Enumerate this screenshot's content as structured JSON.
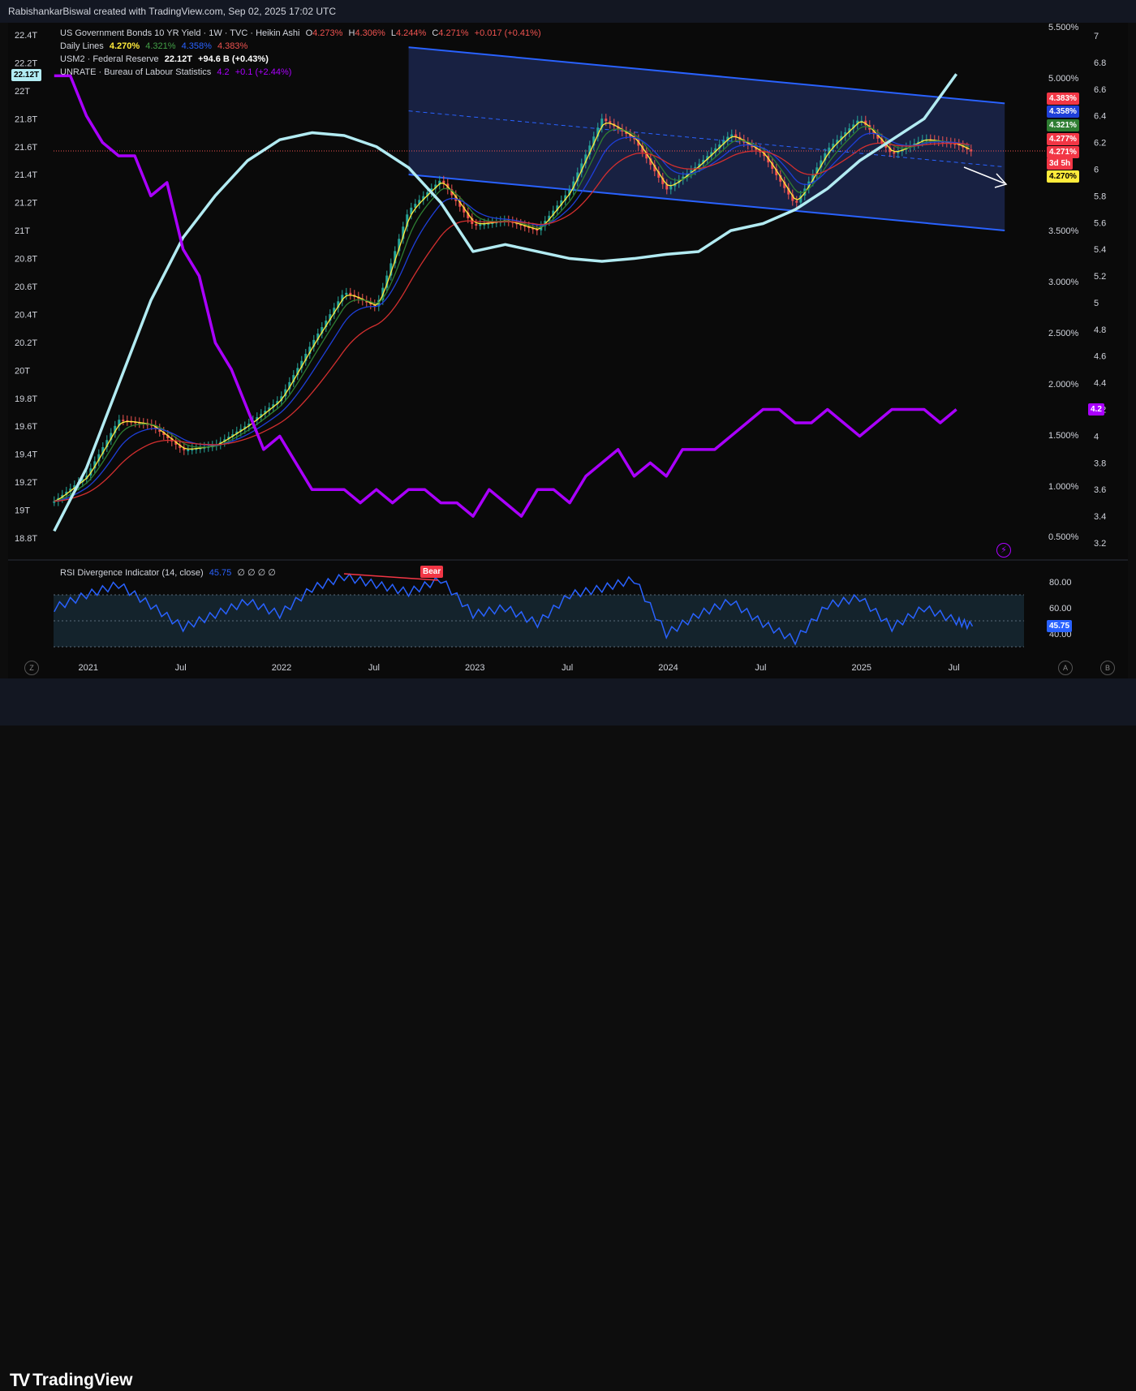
{
  "attribution": "RabishankarBiswal created with TradingView.com, Sep 02, 2025 17:02 UTC",
  "brand": "TradingView",
  "legend": {
    "line1": {
      "name": "US Government Bonds 10 YR Yield · 1W · TVC · Heikin Ashi",
      "o_label": "O",
      "o": "4.273%",
      "h_label": "H",
      "h": "4.306%",
      "l_label": "L",
      "l": "4.244%",
      "c_label": "C",
      "c": "4.271%",
      "chg": "+0.017 (+0.41%)"
    },
    "line2": {
      "name": "Daily Lines",
      "v1": "4.270%",
      "v2": "4.321%",
      "v3": "4.358%",
      "v4": "4.383%"
    },
    "line3": {
      "name": "USM2 · Federal Reserve",
      "value": "22.12T",
      "chg": "+94.6 B (+0.43%)"
    },
    "line4": {
      "name": "UNRATE · Bureau of Labour Statistics",
      "value": "4.2",
      "chg": "+0.1 (+2.44%)"
    },
    "rsi": {
      "name": "RSI Divergence Indicator (14, close)",
      "value": "45.75",
      "zeros": "∅ ∅ ∅ ∅"
    }
  },
  "colors": {
    "bg": "#0a0a0a",
    "m2": "#b2ebf2",
    "unrate": "#aa00ff",
    "yellow": "#ffeb3b",
    "green": "#2e7d32",
    "blue": "#1e3fd8",
    "red": "#d32f2f",
    "channel": "#2962ff",
    "rsi": "#2962ff",
    "up": "#26a69a",
    "down": "#ef5350"
  },
  "left_axis_labels": [
    "22.4T",
    "22.2T",
    "22T",
    "21.8T",
    "21.6T",
    "21.4T",
    "21.2T",
    "21T",
    "20.8T",
    "20.6T",
    "20.4T",
    "20.2T",
    "20T",
    "19.8T",
    "19.6T",
    "19.4T",
    "19.2T",
    "19T",
    "18.8T"
  ],
  "m2_current_tag": "22.12T",
  "yield_axis_labels": [
    "5.500%",
    "5.000%",
    "3.500%",
    "3.000%",
    "2.500%",
    "2.000%",
    "1.500%",
    "1.000%",
    "0.500%"
  ],
  "unrate_axis_labels": [
    "7",
    "6.8",
    "6.6",
    "6.4",
    "6.2",
    "6",
    "5.8",
    "5.6",
    "5.4",
    "5.2",
    "5",
    "4.8",
    "4.6",
    "4.4",
    "4.2",
    "4",
    "3.8",
    "3.6",
    "3.4",
    "3.2"
  ],
  "price_tags": [
    {
      "text": "4.383%",
      "bg": "#f23645",
      "fg": "#ffffff"
    },
    {
      "text": "4.358%",
      "bg": "#1e3fd8",
      "fg": "#ffffff"
    },
    {
      "text": "4.321%",
      "bg": "#2e7d32",
      "fg": "#ffffff"
    },
    {
      "text": "4.277%",
      "bg": "#f23645",
      "fg": "#ffffff"
    },
    {
      "text": "4.271%",
      "bg": "#f23645",
      "fg": "#ffffff"
    },
    {
      "text": "3d 5h",
      "bg": "#f23645",
      "fg": "#ffffff"
    },
    {
      "text": "4.270%",
      "bg": "#ffeb3b",
      "fg": "#000000"
    }
  ],
  "unrate_tag": "4.2",
  "rsi_axis_labels": [
    "80.00",
    "60.00",
    "40.00"
  ],
  "rsi_tag": "45.75",
  "bear_label": "Bear",
  "x_labels": [
    "2021",
    "Jul",
    "2022",
    "Jul",
    "2023",
    "Jul",
    "2024",
    "Jul",
    "2025",
    "Jul"
  ],
  "corner_buttons": {
    "left": "Z",
    "a": "A",
    "b": "B"
  },
  "chart_data": [
    {
      "type": "line",
      "series": [
        {
          "name": "USM2 · Federal Reserve",
          "x": [
            "2020-11",
            "2021-01",
            "2021-03",
            "2021-05",
            "2021-07",
            "2021-09",
            "2021-11",
            "2022-01",
            "2022-03",
            "2022-05",
            "2022-07",
            "2022-09",
            "2022-11",
            "2023-01",
            "2023-03",
            "2023-05",
            "2023-07",
            "2023-09",
            "2023-11",
            "2024-01",
            "2024-03",
            "2024-05",
            "2024-07",
            "2024-09",
            "2024-11",
            "2025-01",
            "2025-03",
            "2025-05",
            "2025-07"
          ],
          "values": [
            18.85,
            19.3,
            19.9,
            20.5,
            20.95,
            21.25,
            21.5,
            21.65,
            21.7,
            21.68,
            21.6,
            21.45,
            21.2,
            20.85,
            20.9,
            20.85,
            20.8,
            20.78,
            20.8,
            20.83,
            20.85,
            21.0,
            21.05,
            21.15,
            21.3,
            21.5,
            21.65,
            21.8,
            22.12
          ]
        },
        {
          "name": "UNRATE · Bureau of Labour Statistics",
          "x": [
            "2020-11",
            "2020-12",
            "2021-01",
            "2021-02",
            "2021-03",
            "2021-04",
            "2021-05",
            "2021-06",
            "2021-07",
            "2021-08",
            "2021-09",
            "2021-10",
            "2021-11",
            "2021-12",
            "2022-01",
            "2022-02",
            "2022-03",
            "2022-04",
            "2022-05",
            "2022-06",
            "2022-07",
            "2022-08",
            "2022-09",
            "2022-10",
            "2022-11",
            "2022-12",
            "2023-01",
            "2023-02",
            "2023-03",
            "2023-04",
            "2023-05",
            "2023-06",
            "2023-07",
            "2023-08",
            "2023-09",
            "2023-10",
            "2023-11",
            "2023-12",
            "2024-01",
            "2024-02",
            "2024-03",
            "2024-04",
            "2024-05",
            "2024-06",
            "2024-07",
            "2024-08",
            "2024-09",
            "2024-10",
            "2024-11",
            "2024-12",
            "2025-01",
            "2025-02",
            "2025-03",
            "2025-04",
            "2025-05",
            "2025-06",
            "2025-07"
          ],
          "values": [
            6.7,
            6.7,
            6.4,
            6.2,
            6.1,
            6.1,
            5.8,
            5.9,
            5.4,
            5.2,
            4.7,
            4.5,
            4.2,
            3.9,
            4.0,
            3.8,
            3.6,
            3.6,
            3.6,
            3.5,
            3.6,
            3.5,
            3.6,
            3.6,
            3.5,
            3.5,
            3.4,
            3.6,
            3.5,
            3.4,
            3.6,
            3.6,
            3.5,
            3.7,
            3.8,
            3.9,
            3.7,
            3.8,
            3.7,
            3.9,
            3.9,
            3.9,
            4.0,
            4.1,
            4.2,
            4.2,
            4.1,
            4.1,
            4.2,
            4.1,
            4.0,
            4.1,
            4.2,
            4.2,
            4.2,
            4.1,
            4.2
          ]
        }
      ]
    },
    {
      "type": "candlestick",
      "title": "US Government Bonds 10 YR Yield · 1W · TVC · Heikin Ashi",
      "x": [
        "2020-11",
        "2021-01",
        "2021-03",
        "2021-05",
        "2021-07",
        "2021-09",
        "2021-11",
        "2022-01",
        "2022-03",
        "2022-05",
        "2022-07",
        "2022-09",
        "2022-11",
        "2023-01",
        "2023-03",
        "2023-05",
        "2023-07",
        "2023-09",
        "2023-11",
        "2024-01",
        "2024-03",
        "2024-05",
        "2024-07",
        "2024-09",
        "2024-11",
        "2025-01",
        "2025-03",
        "2025-05",
        "2025-07",
        "2025-08"
      ],
      "values": [
        0.85,
        1.1,
        1.65,
        1.6,
        1.35,
        1.4,
        1.6,
        1.85,
        2.4,
        2.9,
        2.75,
        3.7,
        4.0,
        3.55,
        3.6,
        3.5,
        3.9,
        4.6,
        4.4,
        3.9,
        4.15,
        4.45,
        4.25,
        3.75,
        4.3,
        4.6,
        4.25,
        4.4,
        4.35,
        4.27
      ],
      "ylim": [
        0.3,
        5.5
      ],
      "channel": {
        "upper": [
          [
            "2022-09",
            5.3
          ],
          [
            "2025-10",
            4.75
          ]
        ],
        "lower": [
          [
            "2022-09",
            4.05
          ],
          [
            "2025-10",
            3.5
          ]
        ]
      }
    },
    {
      "type": "line",
      "title": "RSI Divergence Indicator (14, close)",
      "x": [
        "2020-11",
        "2021-01",
        "2021-03",
        "2021-05",
        "2021-07",
        "2021-09",
        "2021-11",
        "2022-01",
        "2022-03",
        "2022-05",
        "2022-07",
        "2022-09",
        "2022-11",
        "2023-01",
        "2023-03",
        "2023-05",
        "2023-07",
        "2023-09",
        "2023-11",
        "2024-01",
        "2024-03",
        "2024-05",
        "2024-07",
        "2024-09",
        "2024-11",
        "2025-01",
        "2025-03",
        "2025-05",
        "2025-07",
        "2025-08"
      ],
      "values": [
        60,
        70,
        78,
        62,
        45,
        55,
        65,
        55,
        75,
        84,
        78,
        72,
        82,
        55,
        60,
        48,
        70,
        75,
        82,
        40,
        55,
        65,
        48,
        35,
        62,
        68,
        45,
        60,
        50,
        45.75
      ],
      "ylim": [
        30,
        90
      ],
      "lines": [
        70,
        50,
        30
      ]
    }
  ]
}
